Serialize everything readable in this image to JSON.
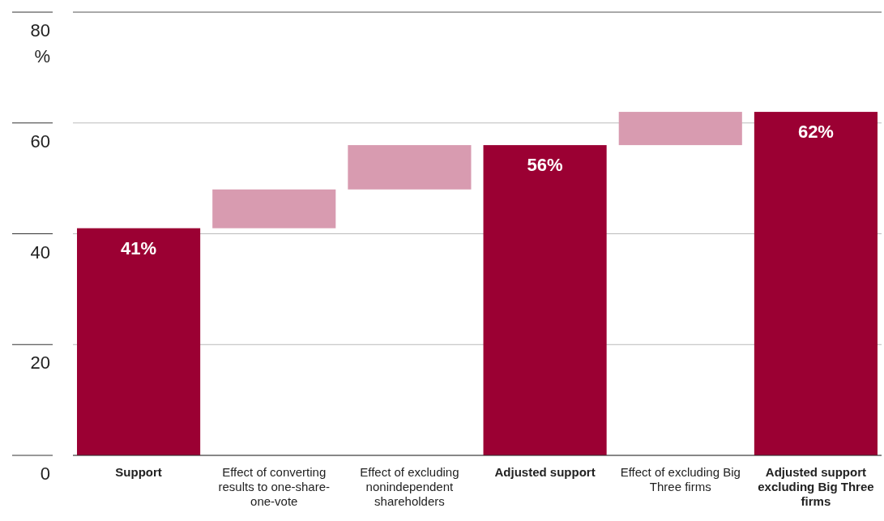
{
  "chart_data": {
    "type": "bar",
    "ylabel": "%",
    "categories": [
      "Support",
      "Effect of converting results to one-share-one-vote",
      "Effect of excluding nonindependent shareholders",
      "Adjusted support",
      "Effect of excluding Big Three firms",
      "Adjusted support excluding Big Three firms"
    ],
    "values": [
      41,
      7,
      8,
      56,
      6,
      62
    ],
    "base": [
      0,
      41,
      48,
      0,
      56,
      0
    ],
    "colors": [
      "#9b0033",
      "#d89bb0",
      "#d89bb0",
      "#9b0033",
      "#d89bb0",
      "#9b0033"
    ],
    "value_labels": [
      "41%",
      null,
      null,
      "56%",
      null,
      "62%"
    ],
    "ylim": [
      0,
      80
    ],
    "yticks": [
      0,
      20,
      40,
      60,
      80
    ],
    "grid": "y"
  }
}
